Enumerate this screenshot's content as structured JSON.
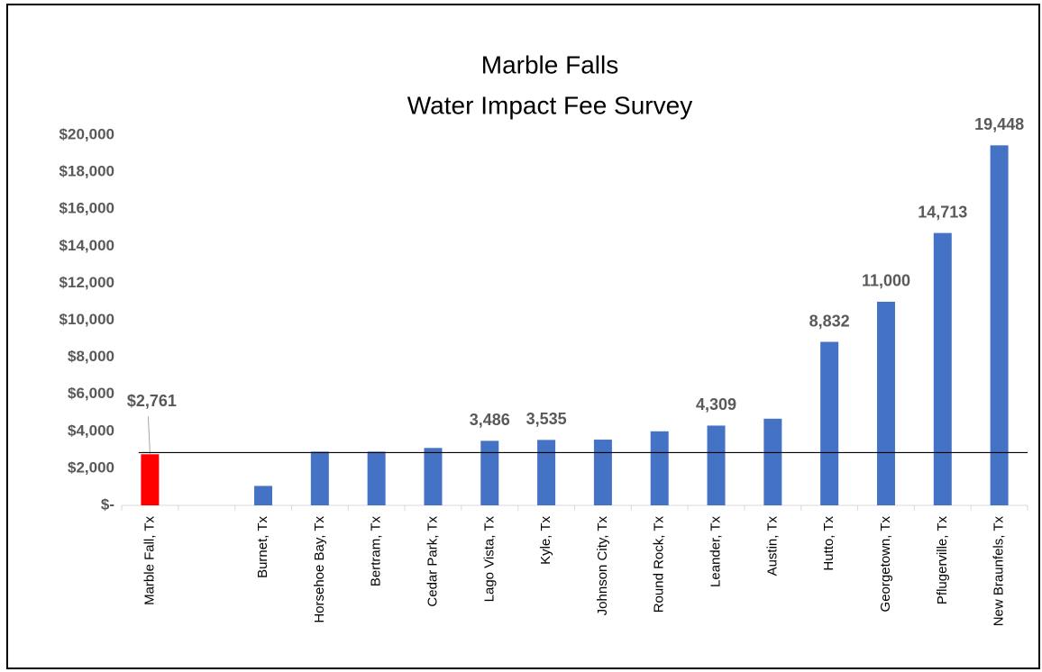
{
  "chart_data": {
    "type": "bar",
    "title": "Marble Falls",
    "subtitle": "Water Impact Fee Survey",
    "categories": [
      "Marble Fall, Tx",
      null,
      "Burnet, Tx",
      "Horsehoe Bay, Tx",
      "Bertram, Tx",
      "Cedar Park, Tx",
      "Lago Vista, Tx",
      "Kyle, Tx",
      "Johnson City, Tx",
      "Round Rock, Tx",
      "Leander, Tx",
      "Austin, Tx",
      "Hutto, Tx",
      "Georgetown, Tx",
      "Pflugerville,  Tx",
      "New Braunfels, Tx"
    ],
    "values": [
      2761,
      null,
      1050,
      2900,
      2900,
      3100,
      3486,
      3535,
      3550,
      4000,
      4309,
      4680,
      8832,
      11000,
      14713,
      19448
    ],
    "value_labels": [
      "$2,761",
      null,
      null,
      null,
      null,
      null,
      "3,486",
      "3,535",
      null,
      null,
      "4,309",
      null,
      "8,832",
      "11,000",
      "14,713",
      "19,448"
    ],
    "colors": [
      "#ff0000",
      null,
      "#4472c4",
      "#4472c4",
      "#4472c4",
      "#4472c4",
      "#4472c4",
      "#4472c4",
      "#4472c4",
      "#4472c4",
      "#4472c4",
      "#4472c4",
      "#4472c4",
      "#4472c4",
      "#4472c4",
      "#4472c4"
    ],
    "reference_line": 2850,
    "ylim": [
      0,
      20000
    ],
    "yticks": [
      {
        "value": 0,
        "label": "$-"
      },
      {
        "value": 2000,
        "label": "$2,000"
      },
      {
        "value": 4000,
        "label": "$4,000"
      },
      {
        "value": 6000,
        "label": "$6,000"
      },
      {
        "value": 8000,
        "label": "$8,000"
      },
      {
        "value": 10000,
        "label": "$10,000"
      },
      {
        "value": 12000,
        "label": "$12,000"
      },
      {
        "value": 14000,
        "label": "$14,000"
      },
      {
        "value": 16000,
        "label": "$16,000"
      },
      {
        "value": 18000,
        "label": "$18,000"
      },
      {
        "value": 20000,
        "label": "$20,000"
      }
    ],
    "grid": false
  }
}
